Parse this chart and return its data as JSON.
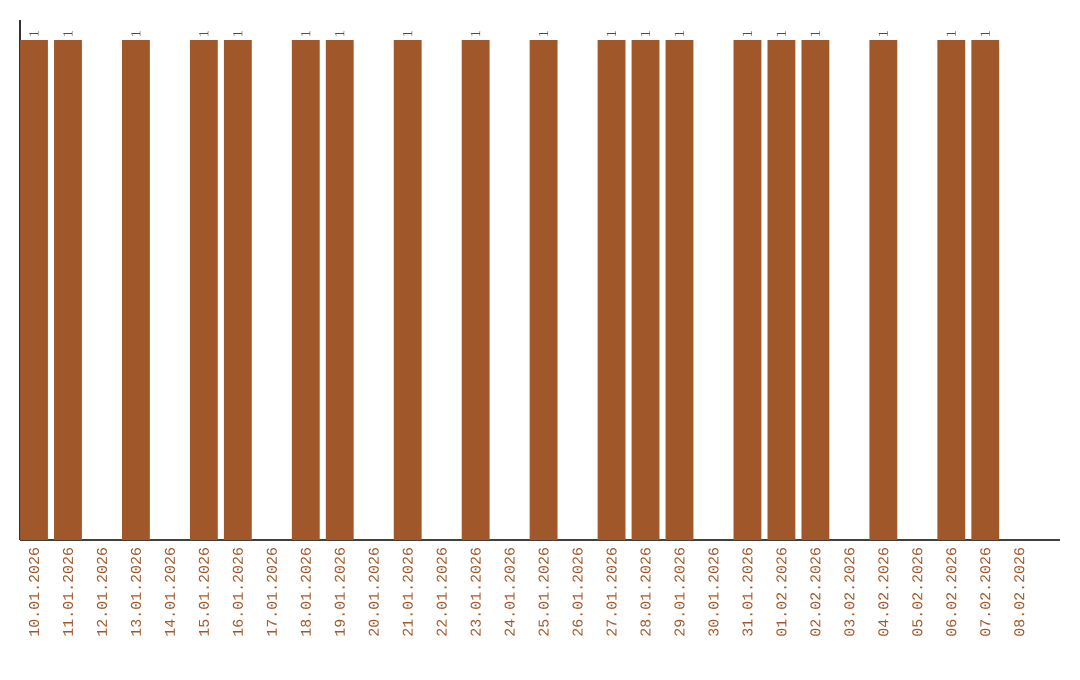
{
  "chart_data": {
    "type": "bar",
    "categories": [
      "10.01.2026",
      "11.01.2026",
      "12.01.2026",
      "13.01.2026",
      "14.01.2026",
      "15.01.2026",
      "16.01.2026",
      "17.01.2026",
      "18.01.2026",
      "19.01.2026",
      "20.01.2026",
      "21.01.2026",
      "22.01.2026",
      "23.01.2026",
      "24.01.2026",
      "25.01.2026",
      "26.01.2026",
      "27.01.2026",
      "28.01.2026",
      "29.01.2026",
      "30.01.2026",
      "31.01.2026",
      "01.02.2026",
      "02.02.2026",
      "03.02.2026",
      "04.02.2026",
      "05.02.2026",
      "06.02.2026",
      "07.02.2026",
      "08.02.2026"
    ],
    "values": [
      1,
      1,
      null,
      1,
      null,
      1,
      1,
      null,
      1,
      1,
      null,
      1,
      null,
      1,
      null,
      1,
      null,
      1,
      1,
      1,
      null,
      1,
      1,
      1,
      null,
      1,
      null,
      1,
      1,
      null
    ],
    "color": "#a0582a",
    "data_labels": true,
    "tick_labels": "x"
  }
}
